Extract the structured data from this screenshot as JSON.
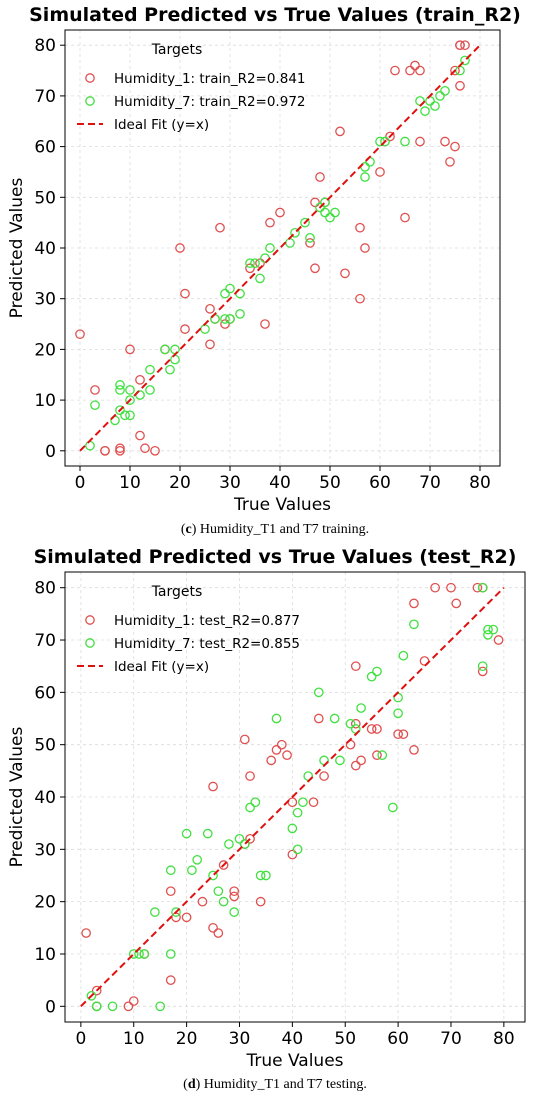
{
  "charts": [
    {
      "title": "Simulated Predicted vs True Values (train_R2)",
      "caption_letter": "c",
      "caption_text": "Humidity_T1 and T7 training."
    },
    {
      "title": "Simulated Predicted vs True Values (test_R2)",
      "caption_letter": "d",
      "caption_text": "Humidity_T1 and T7 testing."
    }
  ],
  "chart_data": [
    {
      "type": "scatter",
      "title": "Simulated Predicted vs True Values (train_R2)",
      "xlabel": "True Values",
      "ylabel": "Predicted Values",
      "xlim": [
        -3,
        84
      ],
      "ylim": [
        -3,
        83
      ],
      "xticks": [
        0,
        10,
        20,
        30,
        40,
        50,
        60,
        70,
        80
      ],
      "yticks": [
        0,
        10,
        20,
        30,
        40,
        50,
        60,
        70,
        80
      ],
      "grid": true,
      "legend_title": "Targets",
      "legend_position": "top-left",
      "series": [
        {
          "name": "Humidity_1: train_R2=0.841",
          "color": "#e05050",
          "marker": "open-circle",
          "points": [
            [
              0,
              23
            ],
            [
              3,
              12
            ],
            [
              5,
              0
            ],
            [
              5,
              0
            ],
            [
              8,
              0.5
            ],
            [
              8,
              0
            ],
            [
              10,
              20
            ],
            [
              12,
              14
            ],
            [
              12,
              3
            ],
            [
              13,
              0.5
            ],
            [
              15,
              0
            ],
            [
              17,
              20
            ],
            [
              20,
              40
            ],
            [
              21,
              31
            ],
            [
              21,
              24
            ],
            [
              26,
              21
            ],
            [
              26,
              28
            ],
            [
              27,
              26
            ],
            [
              28,
              44
            ],
            [
              29,
              25
            ],
            [
              30,
              26
            ],
            [
              34,
              36
            ],
            [
              36,
              37
            ],
            [
              37,
              25
            ],
            [
              38,
              45
            ],
            [
              40,
              47
            ],
            [
              46,
              41
            ],
            [
              47,
              36
            ],
            [
              47,
              49
            ],
            [
              48,
              54
            ],
            [
              49,
              49
            ],
            [
              52,
              63
            ],
            [
              53,
              35
            ],
            [
              56,
              30
            ],
            [
              56,
              44
            ],
            [
              57,
              40
            ],
            [
              60,
              55
            ],
            [
              62,
              62
            ],
            [
              63,
              75
            ],
            [
              65,
              46
            ],
            [
              66,
              75
            ],
            [
              67,
              76
            ],
            [
              68,
              61
            ],
            [
              68,
              75
            ],
            [
              73,
              61
            ],
            [
              74,
              57
            ],
            [
              75,
              60
            ],
            [
              75,
              75
            ],
            [
              76,
              72
            ],
            [
              76,
              80
            ],
            [
              76,
              80
            ],
            [
              77,
              80
            ]
          ]
        },
        {
          "name": "Humidity_7: train_R2=0.972",
          "color": "#40e040",
          "marker": "open-circle",
          "points": [
            [
              2,
              1
            ],
            [
              3,
              9
            ],
            [
              7,
              6
            ],
            [
              8,
              8
            ],
            [
              8,
              12
            ],
            [
              8,
              13
            ],
            [
              9,
              7
            ],
            [
              10,
              7
            ],
            [
              10,
              10
            ],
            [
              10,
              12
            ],
            [
              12,
              11
            ],
            [
              14,
              12
            ],
            [
              14,
              16
            ],
            [
              17,
              20
            ],
            [
              18,
              16
            ],
            [
              19,
              18
            ],
            [
              19,
              20
            ],
            [
              25,
              24
            ],
            [
              27,
              26
            ],
            [
              29,
              26
            ],
            [
              29,
              31
            ],
            [
              30,
              26
            ],
            [
              30,
              32
            ],
            [
              32,
              31
            ],
            [
              32,
              27
            ],
            [
              34,
              37
            ],
            [
              35,
              37
            ],
            [
              36,
              34
            ],
            [
              38,
              40
            ],
            [
              37,
              38
            ],
            [
              42,
              41
            ],
            [
              43,
              43
            ],
            [
              45,
              45
            ],
            [
              46,
              42
            ],
            [
              48,
              48
            ],
            [
              49,
              47
            ],
            [
              49,
              49
            ],
            [
              50,
              46
            ],
            [
              51,
              47
            ],
            [
              57,
              56
            ],
            [
              57,
              54
            ],
            [
              58,
              57
            ],
            [
              60,
              61
            ],
            [
              61,
              61
            ],
            [
              65,
              61
            ],
            [
              68,
              69
            ],
            [
              69,
              67
            ],
            [
              70,
              69
            ],
            [
              71,
              68
            ],
            [
              72,
              70
            ],
            [
              73,
              71
            ],
            [
              76,
              75
            ],
            [
              77,
              77
            ]
          ]
        },
        {
          "name": "Ideal Fit (y=x)",
          "color": "#e01010",
          "marker": "dashed-line",
          "points": [
            [
              0,
              0
            ],
            [
              80,
              80
            ]
          ]
        }
      ]
    },
    {
      "type": "scatter",
      "title": "Simulated Predicted vs True Values (test_R2)",
      "xlabel": "True Values",
      "ylabel": "Predicted Values",
      "xlim": [
        -3,
        84
      ],
      "ylim": [
        -3,
        83
      ],
      "xticks": [
        0,
        10,
        20,
        30,
        40,
        50,
        60,
        70,
        80
      ],
      "yticks": [
        0,
        10,
        20,
        30,
        40,
        50,
        60,
        70,
        80
      ],
      "grid": true,
      "legend_title": "Targets",
      "legend_position": "top-left",
      "series": [
        {
          "name": "Humidity_1: test_R2=0.877",
          "color": "#e05050",
          "marker": "open-circle",
          "points": [
            [
              1,
              14
            ],
            [
              3,
              3
            ],
            [
              3,
              0
            ],
            [
              9,
              0
            ],
            [
              10,
              1
            ],
            [
              12,
              10
            ],
            [
              17,
              5
            ],
            [
              17,
              22
            ],
            [
              18,
              17
            ],
            [
              20,
              17
            ],
            [
              23,
              20
            ],
            [
              25,
              15
            ],
            [
              25,
              42
            ],
            [
              26,
              14
            ],
            [
              27,
              27
            ],
            [
              29,
              22
            ],
            [
              29,
              21
            ],
            [
              31,
              31
            ],
            [
              32,
              32
            ],
            [
              31,
              51
            ],
            [
              32,
              44
            ],
            [
              34,
              20
            ],
            [
              36,
              47
            ],
            [
              37,
              49
            ],
            [
              38,
              50
            ],
            [
              39,
              48
            ],
            [
              40,
              29
            ],
            [
              40,
              39
            ],
            [
              44,
              39
            ],
            [
              45,
              55
            ],
            [
              46,
              44
            ],
            [
              51,
              50
            ],
            [
              52,
              46
            ],
            [
              52,
              54
            ],
            [
              52,
              65
            ],
            [
              53,
              47
            ],
            [
              55,
              53
            ],
            [
              56,
              53
            ],
            [
              56,
              48
            ],
            [
              60,
              52
            ],
            [
              61,
              52
            ],
            [
              63,
              49
            ],
            [
              63,
              77
            ],
            [
              65,
              66
            ],
            [
              67,
              80
            ],
            [
              70,
              80
            ],
            [
              71,
              77
            ],
            [
              75,
              80
            ],
            [
              76,
              80
            ],
            [
              76,
              64
            ],
            [
              79,
              70
            ]
          ]
        },
        {
          "name": "Humidity_7: test_R2=0.855",
          "color": "#40e040",
          "marker": "open-circle",
          "points": [
            [
              2,
              2
            ],
            [
              3,
              0
            ],
            [
              3,
              0
            ],
            [
              6,
              0
            ],
            [
              10,
              10
            ],
            [
              11,
              10
            ],
            [
              12,
              10
            ],
            [
              14,
              18
            ],
            [
              15,
              0
            ],
            [
              17,
              10
            ],
            [
              17,
              26
            ],
            [
              18,
              18
            ],
            [
              20,
              33
            ],
            [
              21,
              26
            ],
            [
              22,
              28
            ],
            [
              24,
              33
            ],
            [
              25,
              25
            ],
            [
              26,
              22
            ],
            [
              27,
              20
            ],
            [
              28,
              31
            ],
            [
              29,
              18
            ],
            [
              30,
              32
            ],
            [
              31,
              31
            ],
            [
              33,
              39
            ],
            [
              32,
              38
            ],
            [
              34,
              25
            ],
            [
              35,
              25
            ],
            [
              37,
              55
            ],
            [
              40,
              34
            ],
            [
              41,
              37
            ],
            [
              41,
              30
            ],
            [
              42,
              39
            ],
            [
              43,
              44
            ],
            [
              45,
              60
            ],
            [
              46,
              47
            ],
            [
              48,
              55
            ],
            [
              49,
              47
            ],
            [
              51,
              54
            ],
            [
              52,
              53
            ],
            [
              53,
              57
            ],
            [
              55,
              63
            ],
            [
              56,
              64
            ],
            [
              57,
              48
            ],
            [
              59,
              38
            ],
            [
              60,
              56
            ],
            [
              60,
              59
            ],
            [
              61,
              67
            ],
            [
              63,
              73
            ],
            [
              76,
              65
            ],
            [
              76,
              80
            ],
            [
              77,
              72
            ],
            [
              77,
              71
            ],
            [
              78,
              72
            ]
          ]
        },
        {
          "name": "Ideal Fit (y=x)",
          "color": "#e01010",
          "marker": "dashed-line",
          "points": [
            [
              0,
              0
            ],
            [
              80,
              80
            ]
          ]
        }
      ]
    }
  ]
}
